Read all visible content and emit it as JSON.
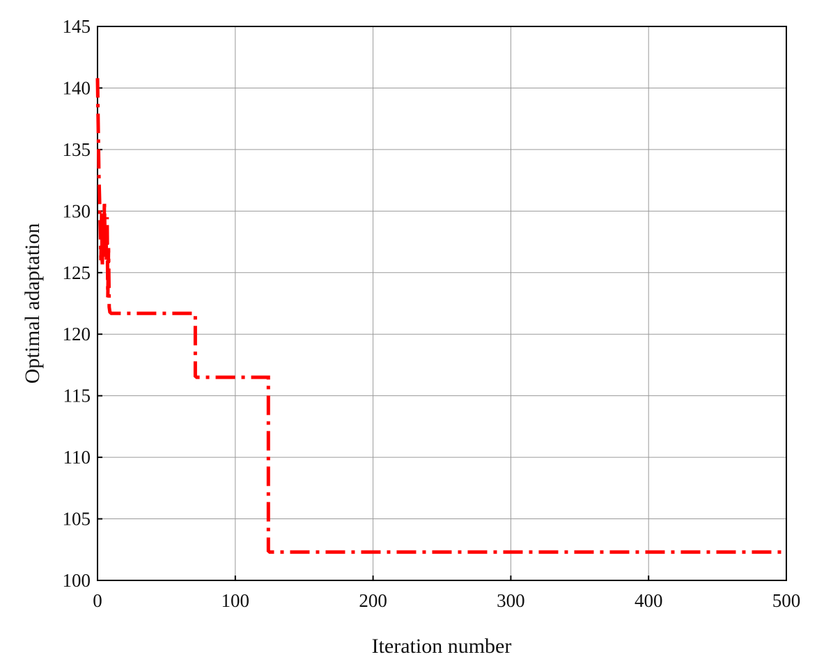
{
  "chart_data": {
    "type": "line",
    "xlabel": "Iteration number",
    "ylabel": "Optimal adaptation",
    "xlim": [
      0,
      500
    ],
    "ylim": [
      100,
      145
    ],
    "xticks": [
      0,
      100,
      200,
      300,
      400,
      500
    ],
    "yticks": [
      100,
      105,
      110,
      115,
      120,
      125,
      130,
      135,
      140,
      145
    ],
    "grid": true,
    "colors": {
      "series": "#ff0000"
    },
    "series": [
      {
        "line_style": "dash-dot",
        "x": [
          0,
          0.5,
          1,
          1.5,
          2,
          2.5,
          3,
          3.5,
          4,
          4.5,
          5,
          5.5,
          6,
          6.5,
          7,
          7.5,
          8,
          8.5,
          9,
          10,
          71,
          71,
          72,
          124,
          124,
          125,
          500
        ],
        "y": [
          140.8,
          137.0,
          133.0,
          130.8,
          128.5,
          126.0,
          129.8,
          125.5,
          129.0,
          126.3,
          130.8,
          127.0,
          128.8,
          126.0,
          129.5,
          123.0,
          127.0,
          122.2,
          121.8,
          121.7,
          121.7,
          116.6,
          116.5,
          116.5,
          102.4,
          102.3,
          102.3
        ]
      }
    ]
  }
}
